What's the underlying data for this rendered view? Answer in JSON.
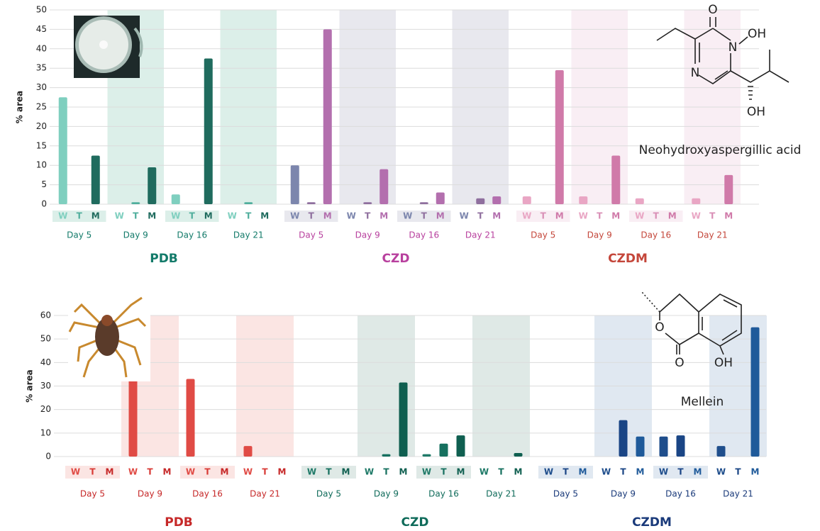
{
  "chart_data": [
    {
      "type": "bar",
      "y_label": "% area",
      "ylim": [
        0,
        50
      ],
      "yticks": [
        0,
        5,
        10,
        15,
        20,
        25,
        30,
        35,
        40,
        45,
        50
      ],
      "grid": true,
      "series_labels": [
        "W",
        "T",
        "M"
      ],
      "groups": [
        {
          "name": "PDB",
          "title_color": "#127a69",
          "band": "#dcefe9",
          "colors": [
            "#7fcfbf",
            "#4fae9c",
            "#1f6b5e"
          ],
          "days": [
            {
              "name": "Day 5",
              "values": [
                27.5,
                0,
                12.5
              ]
            },
            {
              "name": "Day 9",
              "values": [
                0,
                0.5,
                9.5
              ]
            },
            {
              "name": "Day 16",
              "values": [
                2.5,
                0,
                37.5
              ]
            },
            {
              "name": "Day 21",
              "values": [
                0,
                0.5,
                0
              ]
            }
          ]
        },
        {
          "name": "CZD",
          "title_color": "#b8409e",
          "band": "#e8e8ee",
          "colors": [
            "#7c86ad",
            "#8f6f9e",
            "#b36fae"
          ],
          "days": [
            {
              "name": "Day 5",
              "values": [
                10,
                0.5,
                45
              ]
            },
            {
              "name": "Day 9",
              "values": [
                0,
                0.5,
                9
              ]
            },
            {
              "name": "Day 16",
              "values": [
                0,
                0.5,
                3
              ]
            },
            {
              "name": "Day 21",
              "values": [
                0,
                1.5,
                2
              ]
            }
          ]
        },
        {
          "name": "CZDM",
          "title_color": "#c4463a",
          "band": "#f9eef4",
          "colors": [
            "#e9a6c4",
            "#d98fb6",
            "#d07aa9"
          ],
          "days": [
            {
              "name": "Day 5",
              "values": [
                2,
                0,
                34.5
              ]
            },
            {
              "name": "Day 9",
              "values": [
                2,
                0,
                12.5
              ]
            },
            {
              "name": "Day 16",
              "values": [
                1.5,
                0,
                0
              ]
            },
            {
              "name": "Day 21",
              "values": [
                1.5,
                0,
                7.5
              ]
            }
          ]
        }
      ],
      "compound": {
        "name": "Neohydroxyaspergillic acid",
        "atoms": [
          "O",
          "OH",
          "N",
          "N",
          "OH"
        ]
      }
    },
    {
      "type": "bar",
      "y_label": "% area",
      "ylim": [
        0,
        60
      ],
      "yticks": [
        0,
        10,
        20,
        30,
        40,
        50,
        60
      ],
      "grid": true,
      "series_labels": [
        "W",
        "T",
        "M"
      ],
      "groups": [
        {
          "name": "PDB",
          "title_color": "#c62828",
          "band": "#fbe5e3",
          "colors": [
            "#e04b45",
            "#d83a35",
            "#c62828"
          ],
          "days": [
            {
              "name": "Day 5",
              "values": [
                0,
                0,
                0
              ]
            },
            {
              "name": "Day 9",
              "values": [
                33,
                0,
                0
              ]
            },
            {
              "name": "Day 16",
              "values": [
                33,
                0,
                0
              ]
            },
            {
              "name": "Day 21",
              "values": [
                4.5,
                0,
                0
              ]
            }
          ]
        },
        {
          "name": "CZD",
          "title_color": "#0f6b5a",
          "band": "#dfe9e6",
          "colors": [
            "#1f7a68",
            "#16705f",
            "#0f5f50"
          ],
          "days": [
            {
              "name": "Day 5",
              "values": [
                0,
                0,
                0
              ]
            },
            {
              "name": "Day 9",
              "values": [
                0,
                1,
                31.5
              ]
            },
            {
              "name": "Day 16",
              "values": [
                1,
                5.5,
                9
              ]
            },
            {
              "name": "Day 21",
              "values": [
                0,
                0,
                1.5
              ]
            }
          ]
        },
        {
          "name": "CZDM",
          "title_color": "#1a3a7a",
          "band": "#e0e8f1",
          "colors": [
            "#1f4e8c",
            "#1a4585",
            "#1f5a9a"
          ],
          "days": [
            {
              "name": "Day 5",
              "values": [
                0,
                0,
                0
              ]
            },
            {
              "name": "Day 9",
              "values": [
                0,
                15.5,
                8.5
              ]
            },
            {
              "name": "Day 16",
              "values": [
                8.5,
                9,
                0
              ]
            },
            {
              "name": "Day 21",
              "values": [
                4.5,
                0,
                55
              ]
            }
          ]
        }
      ],
      "compound": {
        "name": "Mellein",
        "atoms": [
          "O",
          "O",
          "OH"
        ]
      }
    }
  ]
}
